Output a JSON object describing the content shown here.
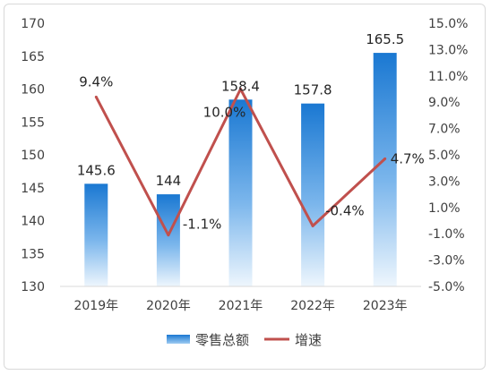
{
  "chart_data": {
    "type": "bar",
    "categories": [
      "2019年",
      "2020年",
      "2021年",
      "2022年",
      "2023年"
    ],
    "series": [
      {
        "name": "零售总额",
        "type": "bar",
        "axis": "left",
        "values": [
          145.6,
          144,
          158.4,
          157.8,
          165.5
        ],
        "value_labels": [
          "145.6",
          "144",
          "158.4",
          "157.8",
          "165.5"
        ],
        "color": "#1f7fd6"
      },
      {
        "name": "增速",
        "type": "line",
        "axis": "right",
        "values": [
          9.4,
          -1.1,
          10.0,
          -0.4,
          4.7
        ],
        "value_labels": [
          "9.4%",
          "-1.1%",
          "10.0%",
          "-0.4%",
          "4.7%"
        ],
        "color": "#c0504d"
      }
    ],
    "y_left": {
      "min": 130,
      "max": 170,
      "step": 5,
      "ticks": [
        "130",
        "135",
        "140",
        "145",
        "150",
        "155",
        "160",
        "165",
        "170"
      ]
    },
    "y_right": {
      "min": -5.0,
      "max": 15.0,
      "step": 2.0,
      "ticks": [
        "-5.0%",
        "-3.0%",
        "-1.0%",
        "1.0%",
        "3.0%",
        "5.0%",
        "7.0%",
        "9.0%",
        "11.0%",
        "13.0%",
        "15.0%"
      ]
    },
    "grid": false,
    "legend_position": "bottom",
    "title": "",
    "xlabel": "",
    "ylabel": ""
  }
}
